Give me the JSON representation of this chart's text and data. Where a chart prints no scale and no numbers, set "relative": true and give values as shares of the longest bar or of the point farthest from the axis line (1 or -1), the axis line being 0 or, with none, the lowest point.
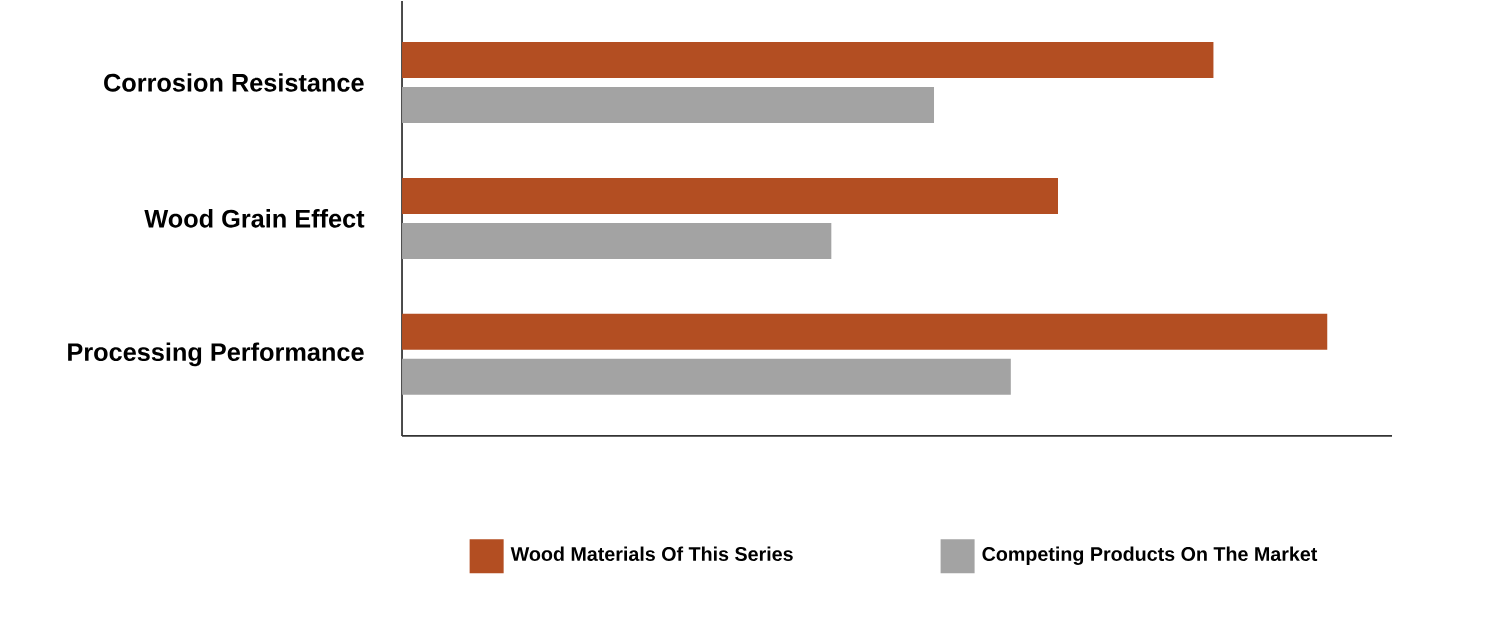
{
  "chart_data": {
    "type": "bar",
    "orientation": "horizontal",
    "relative": true,
    "legend": "bottom",
    "categories": [
      "Corrosion Resistance",
      "Wood Grain Effect",
      "Processing Performance"
    ],
    "series": [
      {
        "name": "Wood Materials Of This Series",
        "color": "#b34e22",
        "values": [
          0.877,
          0.709,
          1.0
        ]
      },
      {
        "name": "Competing Products On The Market",
        "color": "#a3a3a3",
        "values": [
          0.575,
          0.464,
          0.658
        ]
      }
    ]
  }
}
